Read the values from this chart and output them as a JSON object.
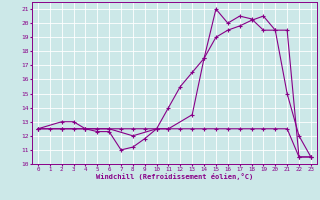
{
  "xlabel": "Windchill (Refroidissement éolien,°C)",
  "background_color": "#cce8e8",
  "grid_color": "#ffffff",
  "line_color": "#880088",
  "xlim": [
    -0.5,
    23.5
  ],
  "ylim": [
    10,
    21.5
  ],
  "yticks": [
    10,
    11,
    12,
    13,
    14,
    15,
    16,
    17,
    18,
    19,
    20,
    21
  ],
  "xticks": [
    0,
    1,
    2,
    3,
    4,
    5,
    6,
    7,
    8,
    9,
    10,
    11,
    12,
    13,
    14,
    15,
    16,
    17,
    18,
    19,
    20,
    21,
    22,
    23
  ],
  "line1_x": [
    0,
    1,
    2,
    3,
    4,
    5,
    6,
    7,
    8,
    9,
    10,
    11,
    12,
    13,
    14,
    15,
    16,
    17,
    18,
    19,
    20,
    21,
    22,
    23
  ],
  "line1_y": [
    12.5,
    12.5,
    12.5,
    12.5,
    12.5,
    12.5,
    12.5,
    12.5,
    12.5,
    12.5,
    12.5,
    12.5,
    12.5,
    12.5,
    12.5,
    12.5,
    12.5,
    12.5,
    12.5,
    12.5,
    12.5,
    12.5,
    10.5,
    10.5
  ],
  "line2_x": [
    0,
    2,
    3,
    4,
    5,
    6,
    7,
    8,
    9,
    10,
    11,
    13,
    14,
    15,
    16,
    17,
    18,
    19,
    20,
    21,
    22,
    23
  ],
  "line2_y": [
    12.5,
    13.0,
    13.0,
    12.5,
    12.3,
    12.3,
    11.0,
    11.2,
    11.8,
    12.5,
    12.5,
    13.5,
    17.5,
    21.0,
    20.0,
    20.5,
    20.3,
    19.5,
    19.5,
    15.0,
    12.0,
    10.5
  ],
  "line3_x": [
    0,
    2,
    4,
    6,
    8,
    10,
    11,
    12,
    13,
    14,
    15,
    16,
    17,
    18,
    19,
    20,
    21,
    22,
    23
  ],
  "line3_y": [
    12.5,
    12.5,
    12.5,
    12.5,
    12.0,
    12.5,
    14.0,
    15.5,
    16.5,
    17.5,
    19.0,
    19.5,
    19.8,
    20.2,
    20.5,
    19.5,
    19.5,
    10.5,
    10.5
  ]
}
